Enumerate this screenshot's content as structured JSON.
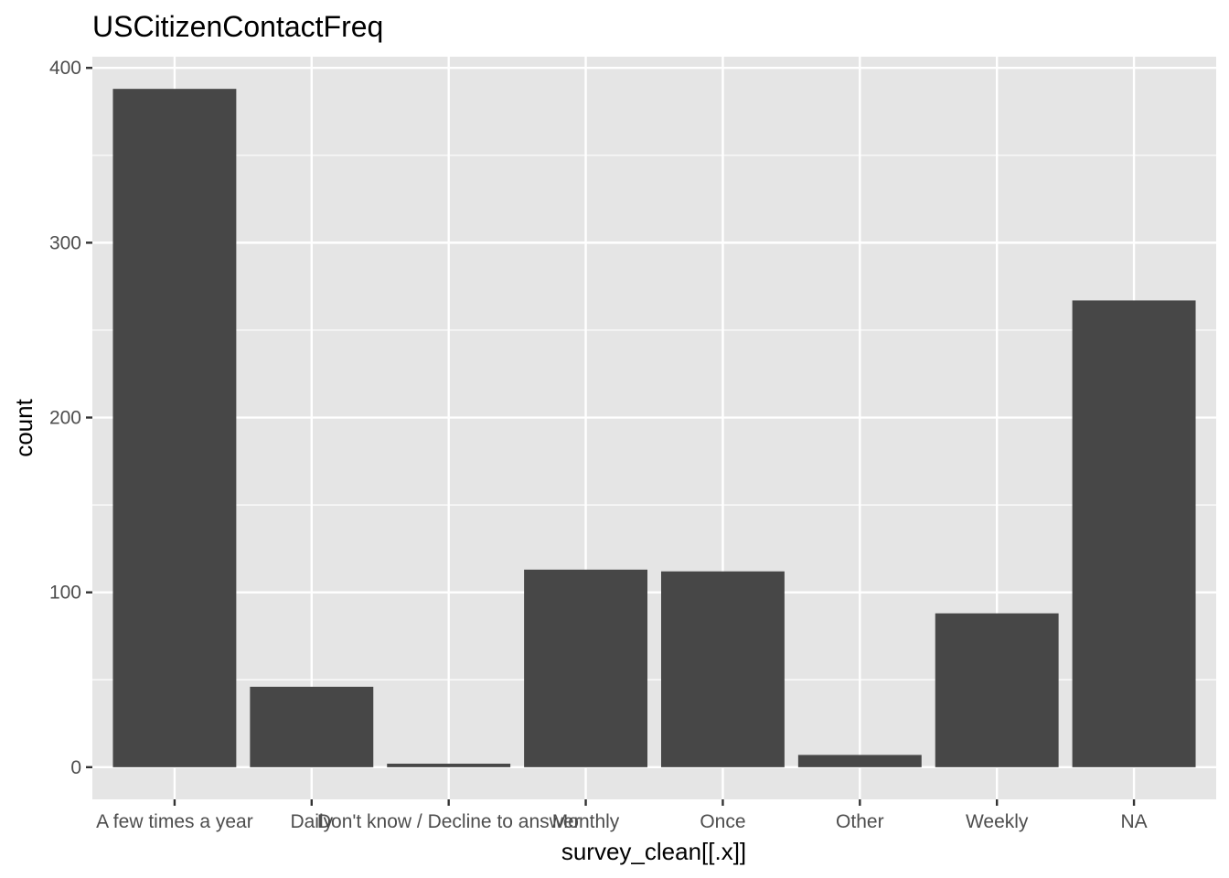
{
  "chart_data": {
    "type": "bar",
    "title": "USCitizenContactFreq",
    "xlabel": "survey_clean[[.x]]",
    "ylabel": "count",
    "categories": [
      "A few times a year",
      "Daily",
      "Don't know / Decline to answer",
      "Monthly",
      "Once",
      "Other",
      "Weekly",
      "NA"
    ],
    "values": [
      388,
      46,
      2,
      113,
      112,
      7,
      88,
      267
    ],
    "yticks": [
      0,
      100,
      200,
      300,
      400
    ],
    "ylim": [
      -18.4,
      406.4
    ],
    "grid": true,
    "legend": "none",
    "colors": {
      "panel": "#e5e5e5",
      "grid": "#ffffff",
      "bar": "#474747",
      "tick": "#333333",
      "tick_label": "#4d4d4d"
    }
  }
}
